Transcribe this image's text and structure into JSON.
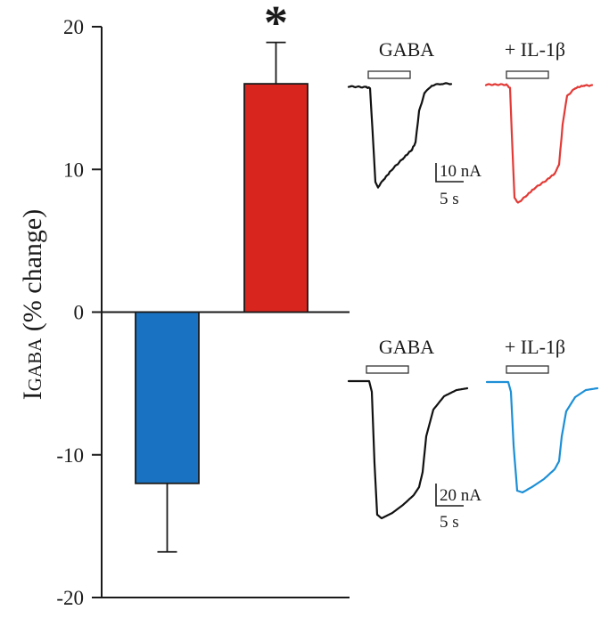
{
  "chart_data": {
    "type": "bar",
    "ylabel_main": "I",
    "ylabel_sub": "GABA",
    "ylabel_rest": " (% change)",
    "ylim": [
      -20,
      20
    ],
    "yticks": [
      20,
      10,
      0,
      -10,
      -20
    ],
    "ytick_labels": [
      "20",
      "10",
      "0",
      "-10",
      "-20"
    ],
    "grid": false,
    "bars": [
      {
        "value": -12,
        "error": 4.8,
        "color": "#1a73c2",
        "significance": ""
      },
      {
        "value": 16,
        "error": 2.9,
        "color": "#d8261f",
        "significance": "*"
      }
    ],
    "insets": [
      {
        "control_label": "GABA",
        "treatment_label": "+ IL-1β",
        "control_color": "#111111",
        "treatment_color": "#e23a36",
        "scale_current": "10 nA",
        "scale_time": "5 s"
      },
      {
        "control_label": "GABA",
        "treatment_label": "+ IL-1β",
        "control_color": "#111111",
        "treatment_color": "#1c8fd6",
        "scale_current": "20 nA",
        "scale_time": "5 s"
      }
    ]
  }
}
